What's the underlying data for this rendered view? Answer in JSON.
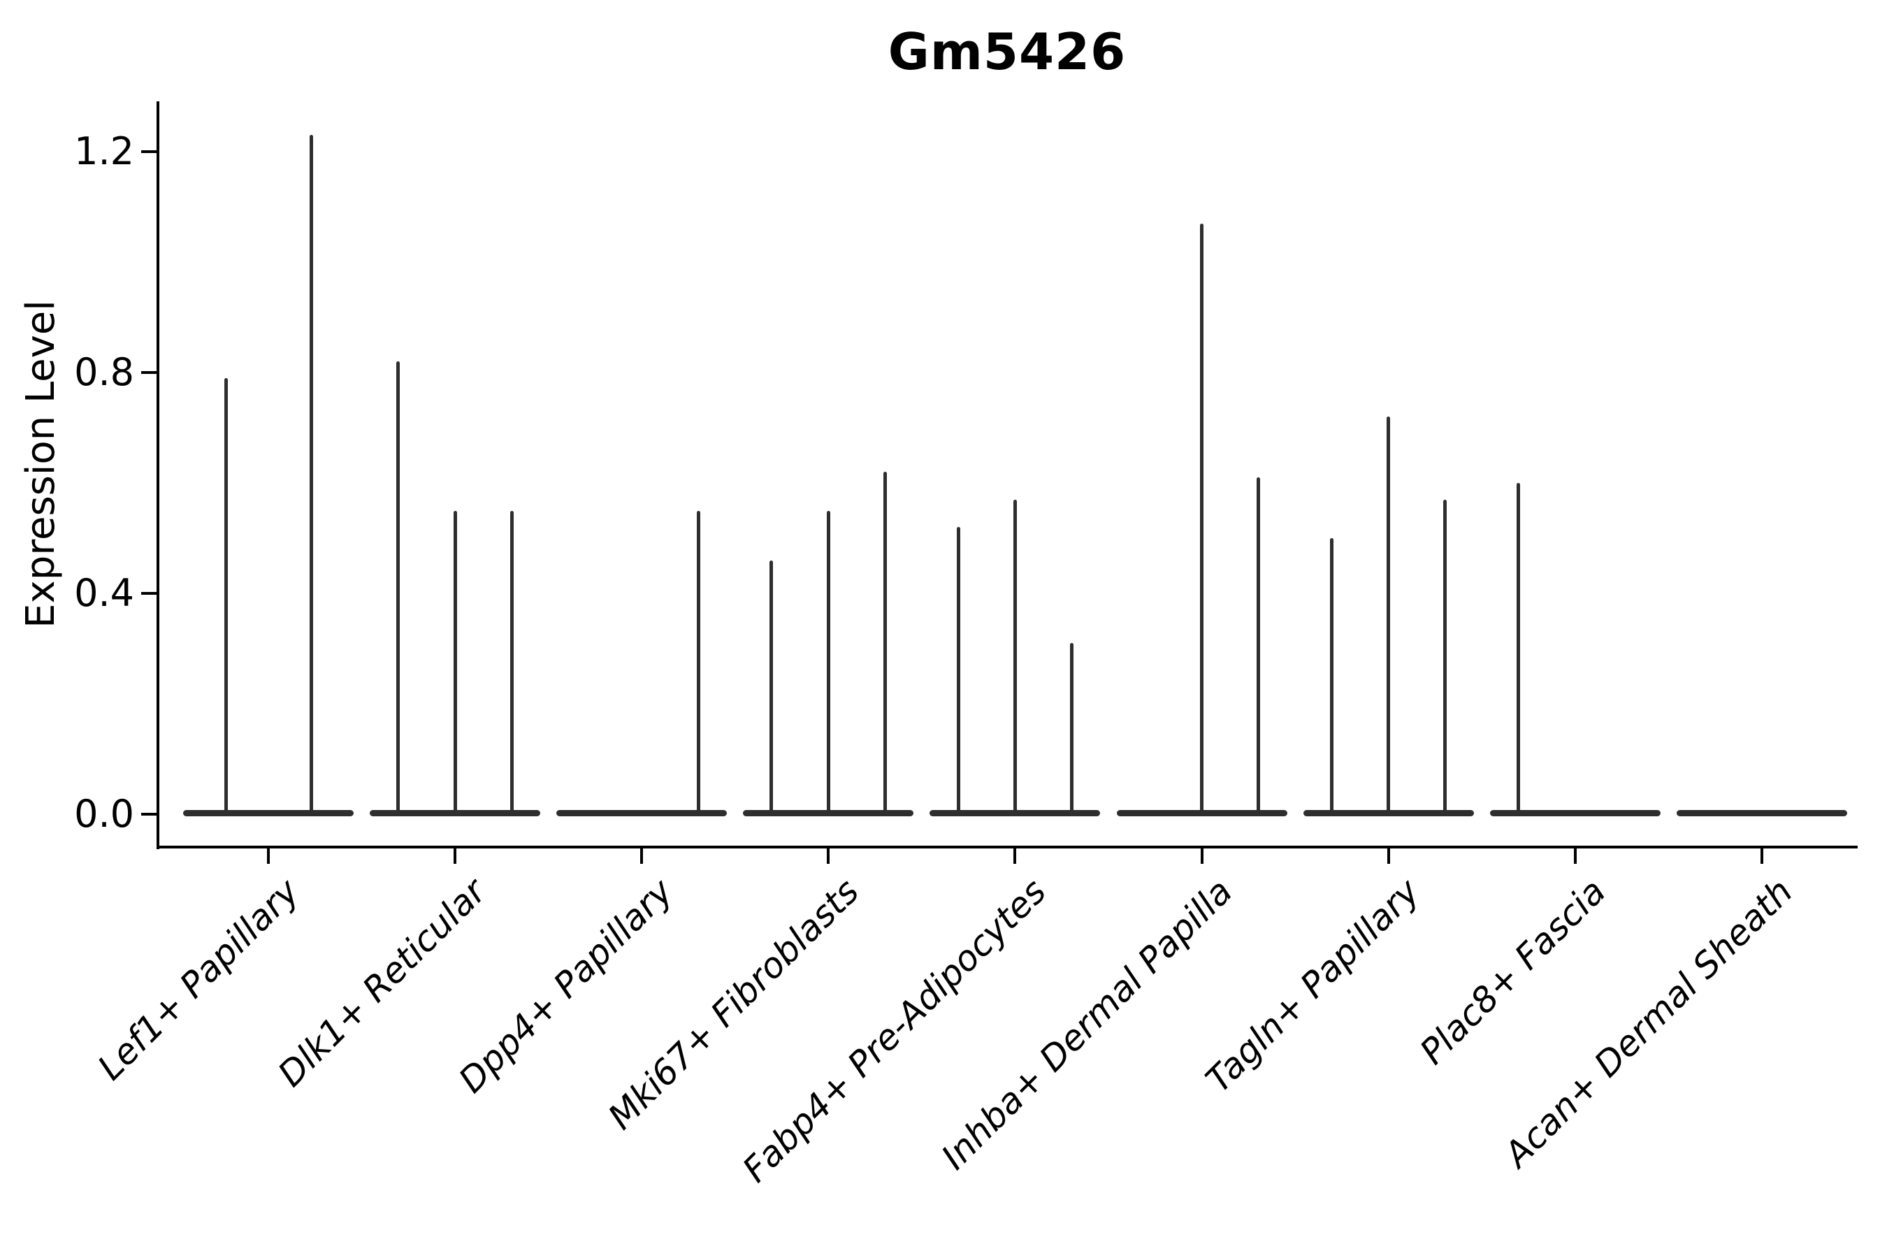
{
  "chart_data": {
    "type": "violin",
    "title": "Gm5426",
    "ylabel": "Expression Level",
    "xlabel": "",
    "ylim": [
      -0.06,
      1.29
    ],
    "yticks": [
      0.0,
      0.4,
      0.8,
      1.2
    ],
    "ytick_labels": [
      "0.0",
      "0.4",
      "0.8",
      "1.2"
    ],
    "grid": false,
    "legend_position": "none",
    "categories": [
      "Lef1+ Papillary",
      "Dlk1+ Reticular",
      "Dpp4+ Papillary",
      "Mki67+ Fibroblasts",
      "Fabp4+ Pre-Adipocytes",
      "Inhba+ Dermal Papilla",
      "Tagln+ Papillary",
      "Plac8+ Fascia",
      "Acan+ Dermal Sheath"
    ],
    "description": "Needle-thin violin distributions per cell type; nearly all mass at expression 0 (flat lens at baseline) with thin spikes reaching the listed peak expression values.",
    "violins": [
      {
        "category": "Lef1+ Papillary",
        "n_slots": 2,
        "spikes": [
          {
            "slot": 0,
            "peak": 0.79
          },
          {
            "slot": 1,
            "peak": 1.23
          }
        ]
      },
      {
        "category": "Dlk1+ Reticular",
        "n_slots": 3,
        "spikes": [
          {
            "slot": 0,
            "peak": 0.82
          },
          {
            "slot": 1,
            "peak": 0.55
          },
          {
            "slot": 2,
            "peak": 0.55
          }
        ]
      },
      {
        "category": "Dpp4+ Papillary",
        "n_slots": 3,
        "spikes": [
          {
            "slot": 2,
            "peak": 0.55
          }
        ]
      },
      {
        "category": "Mki67+ Fibroblasts",
        "n_slots": 3,
        "spikes": [
          {
            "slot": 0,
            "peak": 0.46
          },
          {
            "slot": 1,
            "peak": 0.55
          },
          {
            "slot": 2,
            "peak": 0.62
          }
        ]
      },
      {
        "category": "Fabp4+ Pre-Adipocytes",
        "n_slots": 3,
        "spikes": [
          {
            "slot": 0,
            "peak": 0.52
          },
          {
            "slot": 1,
            "peak": 0.57
          },
          {
            "slot": 2,
            "peak": 0.31
          }
        ]
      },
      {
        "category": "Inhba+ Dermal Papilla",
        "n_slots": 3,
        "spikes": [
          {
            "slot": 1,
            "peak": 1.07
          },
          {
            "slot": 2,
            "peak": 0.61
          }
        ]
      },
      {
        "category": "Tagln+ Papillary",
        "n_slots": 3,
        "spikes": [
          {
            "slot": 0,
            "peak": 0.5
          },
          {
            "slot": 1,
            "peak": 0.72
          },
          {
            "slot": 2,
            "peak": 0.57
          }
        ]
      },
      {
        "category": "Plac8+ Fascia",
        "n_slots": 3,
        "spikes": [
          {
            "slot": 0,
            "peak": 0.6
          }
        ]
      },
      {
        "category": "Acan+ Dermal Sheath",
        "n_slots": 3,
        "spikes": []
      }
    ],
    "colors": {
      "background": "#ffffff",
      "axis": "#000000",
      "text": "#000000",
      "violin": "#2e2e2e"
    }
  }
}
